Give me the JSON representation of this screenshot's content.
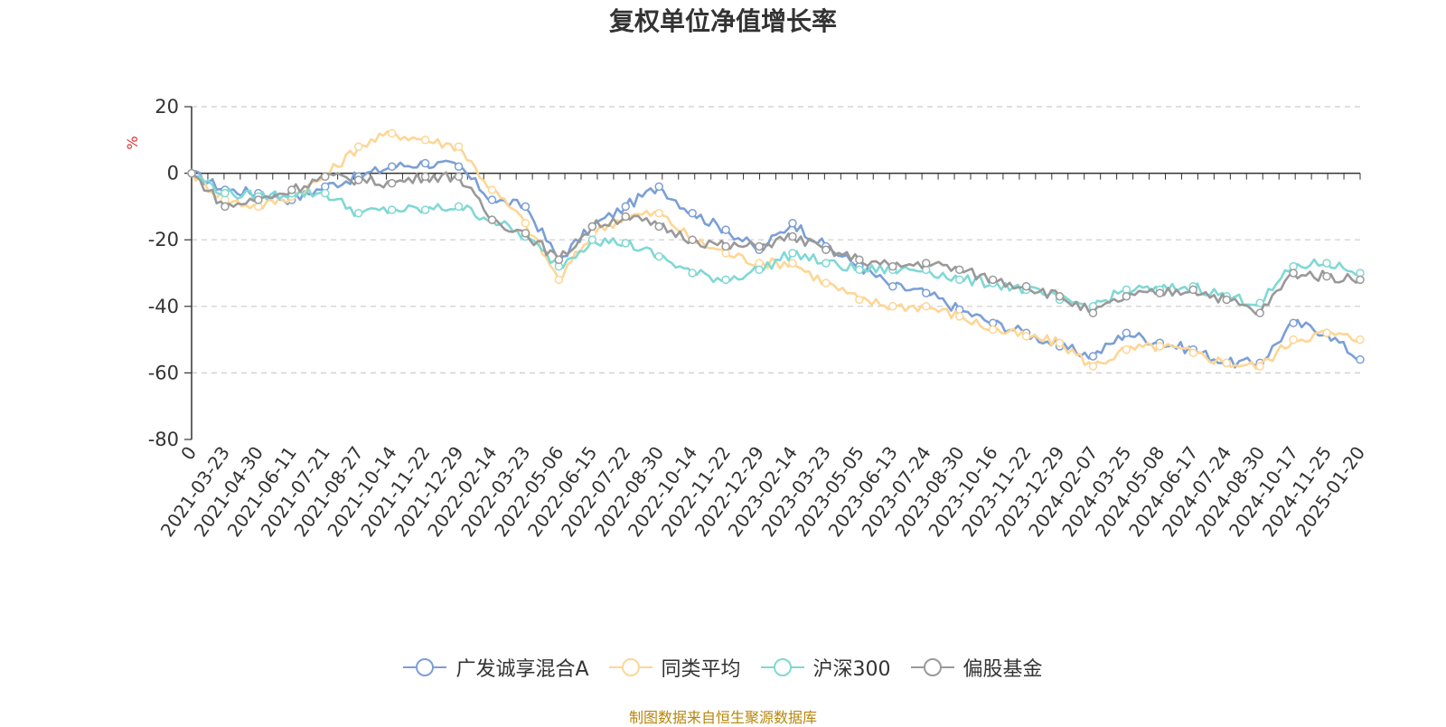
{
  "chart_data": {
    "type": "line",
    "title": "复权单位净值增长率",
    "ylabel": "%",
    "ylim": [
      -80,
      20
    ],
    "yticks": [
      20,
      0,
      -20,
      -40,
      -60,
      -80
    ],
    "x_start_label": "0",
    "x_tick_labels": [
      "2021-03-23",
      "2021-04-30",
      "2021-06-11",
      "2021-07-21",
      "2021-08-27",
      "2021-10-14",
      "2021-11-22",
      "2021-12-29",
      "2022-02-14",
      "2022-03-23",
      "2022-05-06",
      "2022-06-15",
      "2022-07-22",
      "2022-08-30",
      "2022-10-14",
      "2022-11-22",
      "2022-12-29",
      "2023-02-14",
      "2023-03-23",
      "2023-05-05",
      "2023-06-13",
      "2023-07-24",
      "2023-08-30",
      "2023-10-16",
      "2023-11-22",
      "2023-12-29",
      "2024-02-07",
      "2024-03-25",
      "2024-05-08",
      "2024-06-17",
      "2024-07-24",
      "2024-08-30",
      "2024-10-17",
      "2024-11-25",
      "2025-01-20"
    ],
    "x": [
      "0",
      "2021-03-23",
      "2021-04-30",
      "2021-06-11",
      "2021-07-21",
      "2021-08-27",
      "2021-10-14",
      "2021-11-22",
      "2021-12-29",
      "2022-02-14",
      "2022-03-23",
      "2022-05-06",
      "2022-06-15",
      "2022-07-22",
      "2022-08-30",
      "2022-10-14",
      "2022-11-22",
      "2022-12-29",
      "2023-02-14",
      "2023-03-23",
      "2023-05-05",
      "2023-06-13",
      "2023-07-24",
      "2023-08-30",
      "2023-10-16",
      "2023-11-22",
      "2023-12-29",
      "2024-02-07",
      "2024-03-25",
      "2024-05-08",
      "2024-06-17",
      "2024-07-24",
      "2024-08-30",
      "2024-10-17",
      "2024-11-25",
      "2025-01-20"
    ],
    "series": [
      {
        "name": "广发诚享混合A",
        "color": "#7b9fd6",
        "values": [
          0,
          -5,
          -6,
          -8,
          -4,
          -1,
          2,
          3,
          2,
          -8,
          -10,
          -26,
          -16,
          -10,
          -4,
          -12,
          -17,
          -23,
          -15,
          -22,
          -28,
          -34,
          -36,
          -41,
          -45,
          -48,
          -52,
          -55,
          -48,
          -51,
          -53,
          -57,
          -57,
          -45,
          -48,
          -56
        ]
      },
      {
        "name": "同类平均",
        "color": "#fdd695",
        "values": [
          0,
          -8,
          -10,
          -7,
          -1,
          8,
          12,
          10,
          8,
          -5,
          -15,
          -32,
          -18,
          -13,
          -12,
          -20,
          -24,
          -27,
          -27,
          -33,
          -38,
          -40,
          -40,
          -43,
          -47,
          -49,
          -51,
          -58,
          -53,
          -52,
          -54,
          -57,
          -58,
          -50,
          -48,
          -50
        ]
      },
      {
        "name": "沪深300",
        "color": "#80d8d4",
        "values": [
          0,
          -6,
          -7,
          -6,
          -6,
          -12,
          -11,
          -11,
          -10,
          -14,
          -19,
          -28,
          -20,
          -21,
          -25,
          -30,
          -32,
          -29,
          -24,
          -27,
          -29,
          -29,
          -29,
          -32,
          -33,
          -35,
          -38,
          -40,
          -35,
          -35,
          -34,
          -37,
          -39,
          -28,
          -27,
          -30
        ]
      },
      {
        "name": "偏股基金",
        "color": "#999999",
        "values": [
          0,
          -10,
          -8,
          -5,
          -1,
          -2,
          -3,
          -1,
          -1,
          -14,
          -18,
          -26,
          -16,
          -13,
          -16,
          -20,
          -22,
          -22,
          -19,
          -23,
          -26,
          -28,
          -27,
          -29,
          -32,
          -34,
          -37,
          -42,
          -37,
          -36,
          -35,
          -38,
          -42,
          -30,
          -31,
          -32
        ]
      }
    ],
    "legend_position": "bottom",
    "grid": true
  },
  "source_note": "制图数据来自恒生聚源数据库"
}
